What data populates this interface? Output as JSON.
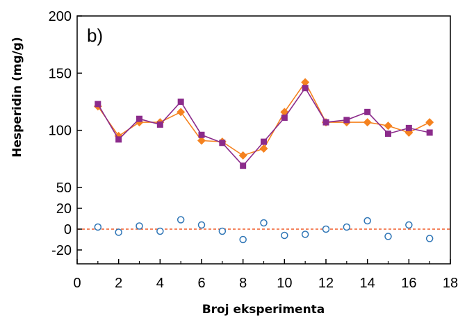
{
  "chart_data": {
    "type": "scatter",
    "panel_label": "b)",
    "xlabel": "Broj eksperimenta",
    "ylabel": "Hesperidin (mg/g)",
    "xlim": [
      0,
      18
    ],
    "x_ticks": [
      "0",
      "2",
      "4",
      "6",
      "8",
      "10",
      "12",
      "14",
      "16",
      "18"
    ],
    "y_ticks": [
      {
        "value": 200,
        "label": "200"
      },
      {
        "value": 150,
        "label": "150"
      },
      {
        "value": 100,
        "label": "100"
      },
      {
        "value": 50,
        "label": "50"
      },
      {
        "value": 20,
        "label": "20"
      },
      {
        "value": 0,
        "label": "0"
      },
      {
        "value": -20,
        "label": "-20"
      }
    ],
    "x": [
      1,
      2,
      3,
      4,
      5,
      6,
      7,
      8,
      9,
      10,
      11,
      12,
      13,
      14,
      15,
      16,
      17
    ],
    "series": [
      {
        "marker": "diamond",
        "color": "#f5821f",
        "values": [
          121,
          95,
          107,
          107,
          116,
          91,
          90,
          78,
          84,
          116,
          142,
          107,
          107,
          107,
          104,
          98,
          107
        ]
      },
      {
        "marker": "square",
        "color": "#8b2b8b",
        "values": [
          123,
          92,
          110,
          105,
          125,
          96,
          89,
          69,
          90,
          111,
          137,
          107,
          109,
          116,
          97,
          102,
          98
        ]
      },
      {
        "marker": "open-circle",
        "color": "#2e75b6",
        "values": [
          2,
          -3,
          3,
          -2,
          9,
          4,
          -2,
          -10,
          6,
          -6,
          -5,
          0,
          2,
          8,
          -7,
          4,
          -9
        ]
      }
    ],
    "reference_line": {
      "y": 0,
      "style": "dashed",
      "color": "#f05a28"
    },
    "grid": false
  }
}
